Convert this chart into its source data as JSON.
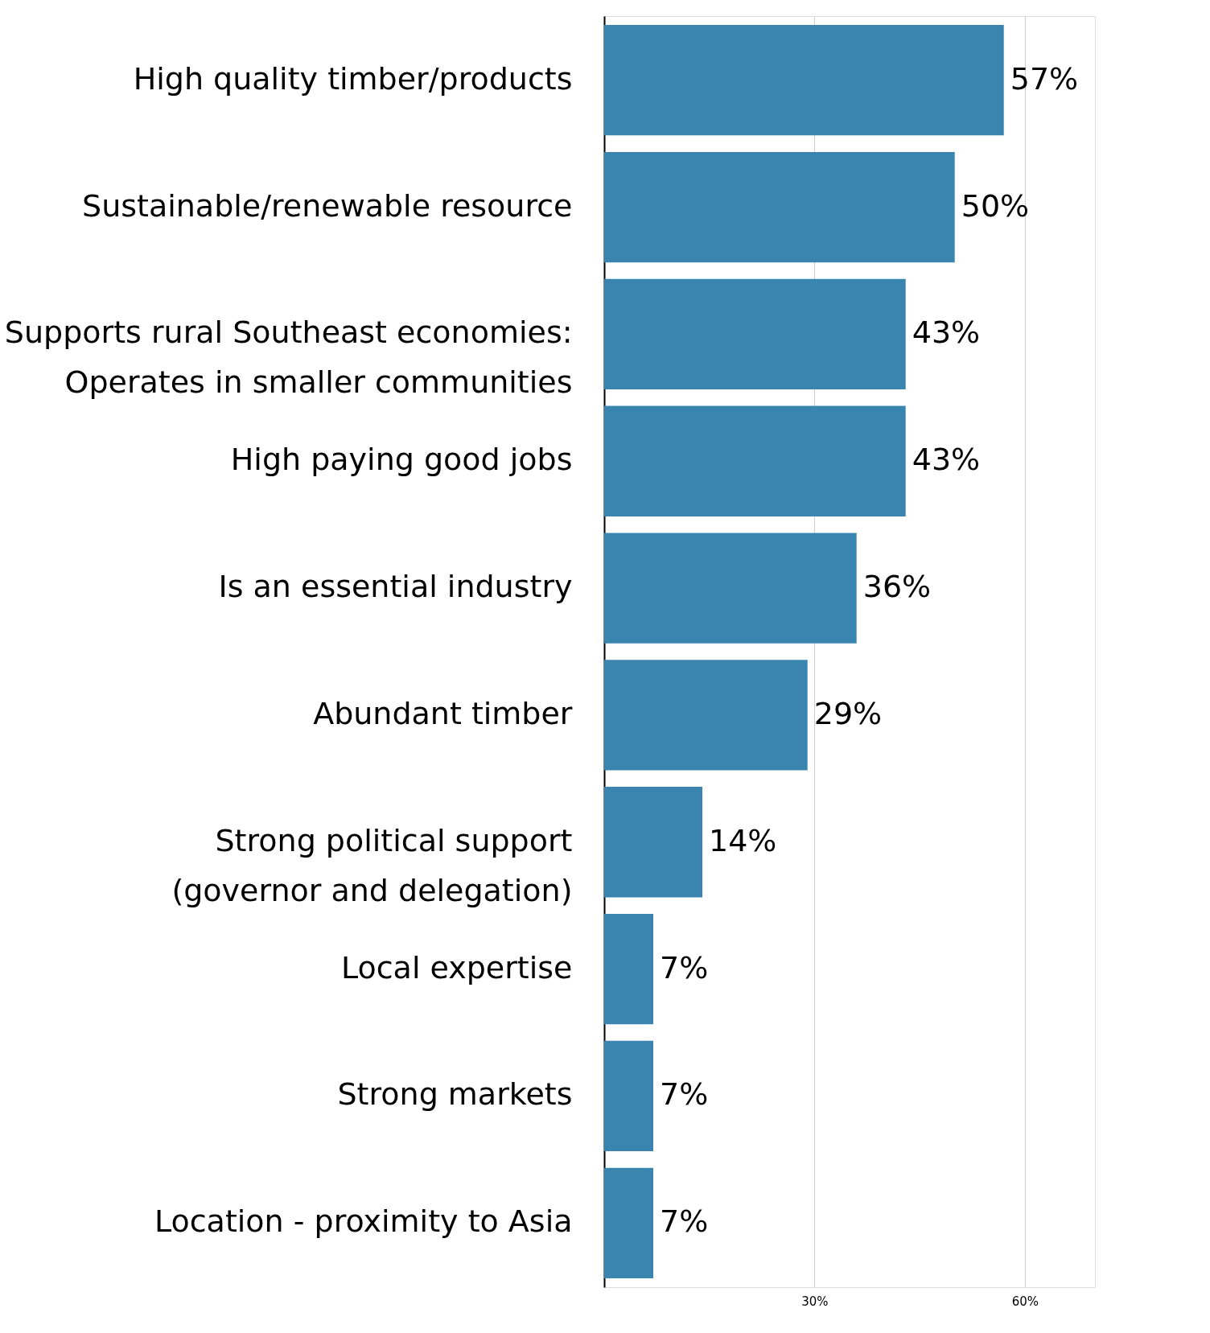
{
  "chart_data": {
    "type": "bar",
    "orientation": "horizontal",
    "categories": [
      "High quality timber/products",
      "Sustainable/renewable resource",
      "Supports rural Southeast economies:\nOperates in smaller communities",
      "High paying good jobs",
      "Is an essential industry",
      "Abundant timber",
      "Strong political support\n(governor and delegation)",
      "Local expertise",
      "Strong markets",
      "Location - proximity to Asia"
    ],
    "values": [
      57,
      50,
      43,
      43,
      36,
      29,
      14,
      7,
      7,
      7
    ],
    "value_labels": [
      "57%",
      "50%",
      "43%",
      "43%",
      "36%",
      "29%",
      "14%",
      "7%",
      "7%",
      "7%"
    ],
    "color": "#3a85b0",
    "xlim": [
      0,
      70
    ],
    "xticks": [
      {
        "value": 0,
        "label": null
      },
      {
        "value": 30,
        "label": "30%"
      },
      {
        "value": 60,
        "label": "60%"
      }
    ],
    "grid": "x"
  }
}
